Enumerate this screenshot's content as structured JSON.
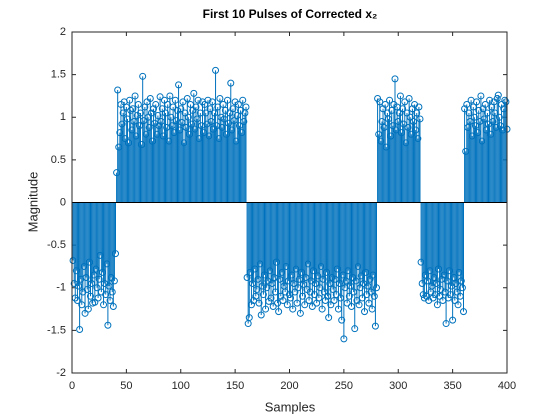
{
  "chart_data": {
    "type": "stem",
    "title": "First 10 Pulses of Corrected x₂",
    "xlabel": "Samples",
    "ylabel": "Magnitude",
    "color": "#0072bd",
    "xlim": [
      0,
      400
    ],
    "ylim": [
      -2,
      2
    ],
    "xticks": [
      0,
      50,
      100,
      150,
      200,
      250,
      300,
      350,
      400
    ],
    "yticks": [
      -2,
      -1.5,
      -1,
      -0.5,
      0,
      0.5,
      1,
      1.5,
      2
    ],
    "x": [
      1,
      2,
      3,
      4,
      5,
      6,
      7,
      8,
      9,
      10,
      11,
      12,
      13,
      14,
      15,
      16,
      17,
      18,
      19,
      20,
      21,
      22,
      23,
      24,
      25,
      26,
      27,
      28,
      29,
      30,
      31,
      32,
      33,
      34,
      35,
      36,
      37,
      38,
      39,
      40,
      41,
      42,
      43,
      44,
      45,
      46,
      47,
      48,
      49,
      50,
      51,
      52,
      53,
      54,
      55,
      56,
      57,
      58,
      59,
      60,
      61,
      62,
      63,
      64,
      65,
      66,
      67,
      68,
      69,
      70,
      71,
      72,
      73,
      74,
      75,
      76,
      77,
      78,
      79,
      80,
      81,
      82,
      83,
      84,
      85,
      86,
      87,
      88,
      89,
      90,
      91,
      92,
      93,
      94,
      95,
      96,
      97,
      98,
      99,
      100,
      101,
      102,
      103,
      104,
      105,
      106,
      107,
      108,
      109,
      110,
      111,
      112,
      113,
      114,
      115,
      116,
      117,
      118,
      119,
      120,
      121,
      122,
      123,
      124,
      125,
      126,
      127,
      128,
      129,
      130,
      131,
      132,
      133,
      134,
      135,
      136,
      137,
      138,
      139,
      140,
      141,
      142,
      143,
      144,
      145,
      146,
      147,
      148,
      149,
      150,
      151,
      152,
      153,
      154,
      155,
      156,
      157,
      158,
      159,
      160,
      161,
      162,
      163,
      164,
      165,
      166,
      167,
      168,
      169,
      170,
      171,
      172,
      173,
      174,
      175,
      176,
      177,
      178,
      179,
      180,
      181,
      182,
      183,
      184,
      185,
      186,
      187,
      188,
      189,
      190,
      191,
      192,
      193,
      194,
      195,
      196,
      197,
      198,
      199,
      200,
      201,
      202,
      203,
      204,
      205,
      206,
      207,
      208,
      209,
      210,
      211,
      212,
      213,
      214,
      215,
      216,
      217,
      218,
      219,
      220,
      221,
      222,
      223,
      224,
      225,
      226,
      227,
      228,
      229,
      230,
      231,
      232,
      233,
      234,
      235,
      236,
      237,
      238,
      239,
      240,
      241,
      242,
      243,
      244,
      245,
      246,
      247,
      248,
      249,
      250,
      251,
      252,
      253,
      254,
      255,
      256,
      257,
      258,
      259,
      260,
      261,
      262,
      263,
      264,
      265,
      266,
      267,
      268,
      269,
      270,
      271,
      272,
      273,
      274,
      275,
      276,
      277,
      278,
      279,
      280,
      281,
      282,
      283,
      284,
      285,
      286,
      287,
      288,
      289,
      290,
      291,
      292,
      293,
      294,
      295,
      296,
      297,
      298,
      299,
      300,
      301,
      302,
      303,
      304,
      305,
      306,
      307,
      308,
      309,
      310,
      311,
      312,
      313,
      314,
      315,
      316,
      317,
      318,
      319,
      320,
      321,
      322,
      323,
      324,
      325,
      326,
      327,
      328,
      329,
      330,
      331,
      332,
      333,
      334,
      335,
      336,
      337,
      338,
      339,
      340,
      341,
      342,
      343,
      344,
      345,
      346,
      347,
      348,
      349,
      350,
      351,
      352,
      353,
      354,
      355,
      356,
      357,
      358,
      359,
      360,
      361,
      362,
      363,
      364,
      365,
      366,
      367,
      368,
      369,
      370,
      371,
      372,
      373,
      374,
      375,
      376,
      377,
      378,
      379,
      380,
      381,
      382,
      383,
      384,
      385,
      386,
      387,
      388,
      389,
      390,
      391,
      392,
      393,
      394,
      395,
      396,
      397,
      398,
      399,
      400
    ],
    "values": [
      -0.68,
      -0.95,
      -1.12,
      -0.8,
      -1.15,
      -0.98,
      -1.49,
      -0.9,
      -1.2,
      -1.05,
      -0.75,
      -1.3,
      -0.88,
      -1.02,
      -1.25,
      -0.7,
      -1.1,
      -0.95,
      -1.18,
      -0.85,
      -1.17,
      -0.78,
      -1.0,
      -1.12,
      -0.9,
      -0.62,
      -1.05,
      -0.82,
      -1.2,
      -0.95,
      -1.08,
      -0.72,
      -1.44,
      -0.98,
      -1.15,
      -0.88,
      -1.05,
      -1.22,
      -0.92,
      -0.6,
      0.35,
      1.32,
      0.65,
      0.82,
      1.15,
      0.92,
      1.05,
      1.18,
      0.75,
      1.12,
      0.98,
      0.7,
      1.2,
      1.08,
      0.85,
      1.1,
      0.95,
      1.25,
      0.78,
      1.02,
      1.15,
      0.9,
      1.05,
      0.68,
      1.48,
      0.96,
      1.12,
      0.8,
      1.18,
      1.0,
      0.88,
      1.22,
      1.05,
      0.72,
      1.1,
      0.93,
      1.15,
      0.8,
      1.02,
      0.9,
      1.24,
      0.95,
      1.1,
      0.78,
      1.2,
      1.05,
      0.88,
      1.15,
      0.72,
      1.25,
      1.0,
      0.9,
      1.12,
      0.82,
      1.2,
      0.96,
      1.08,
      1.38,
      0.85,
      1.1,
      0.94,
      1.18,
      0.7,
      1.05,
      0.88,
      1.22,
      1.0,
      0.8,
      1.15,
      0.92,
      1.08,
      1.28,
      0.86,
      1.12,
      0.98,
      1.2,
      0.75,
      1.05,
      0.9,
      1.18,
      0.82,
      1.15,
      1.05,
      0.92,
      1.2,
      0.78,
      1.1,
      0.95,
      1.18,
      0.86,
      1.05,
      1.55,
      0.9,
      1.12,
      0.75,
      1.22,
      1.0,
      0.88,
      1.15,
      0.98,
      1.08,
      0.8,
      1.2,
      0.93,
      1.05,
      1.4,
      0.85,
      1.1,
      0.96,
      1.18,
      0.72,
      1.02,
      1.15,
      0.9,
      1.08,
      0.82,
      1.2,
      0.95,
      1.05,
      1.12,
      -0.88,
      -1.42,
      -1.35,
      -0.82,
      -1.2,
      -0.95,
      -1.15,
      -0.78,
      -1.1,
      -1.02,
      -0.9,
      -1.18,
      -0.72,
      -1.32,
      -0.98,
      -1.08,
      -0.85,
      -1.25,
      -1.0,
      -0.92,
      -1.16,
      -0.8,
      -1.12,
      -0.95,
      -1.22,
      -0.88,
      -1.05,
      -0.7,
      -1.18,
      -1.28,
      -0.9,
      -1.1,
      -0.82,
      -1.15,
      -0.98,
      -1.05,
      -0.75,
      -1.2,
      -0.92,
      -1.08,
      -1.12,
      -0.85,
      -1.25,
      -0.95,
      -1.05,
      -0.78,
      -1.18,
      -1.0,
      -0.9,
      -1.3,
      -0.82,
      -1.1,
      -0.96,
      -1.2,
      -0.88,
      -1.02,
      -0.72,
      -1.15,
      -1.05,
      -0.92,
      -1.22,
      -0.8,
      -1.08,
      -0.95,
      -1.18,
      -0.86,
      -1.12,
      -1.0,
      -0.75,
      -1.25,
      -0.9,
      -1.05,
      -1.15,
      -0.82,
      -1.1,
      -1.35,
      -0.95,
      -1.2,
      -0.88,
      -1.02,
      -1.15,
      -0.9,
      -1.08,
      -0.78,
      -1.25,
      -0.95,
      -1.12,
      -1.38,
      -0.85,
      -1.6,
      -1.0,
      -0.92,
      -1.18,
      -0.8,
      -1.1,
      -0.98,
      -1.22,
      -0.88,
      -1.05,
      -1.48,
      -0.92,
      -1.15,
      -0.75,
      -1.2,
      -1.0,
      -0.86,
      -1.12,
      -0.95,
      -1.28,
      -0.82,
      -1.08,
      -0.98,
      -1.18,
      -0.9,
      -1.05,
      -1.25,
      -0.85,
      -1.1,
      -1.45,
      -1.0,
      1.22,
      0.8,
      1.18,
      0.72,
      0.95,
      1.1,
      0.88,
      1.15,
      0.65,
      1.05,
      0.98,
      1.2,
      0.78,
      1.08,
      0.9,
      1.15,
      1.45,
      0.85,
      1.12,
      0.95,
      1.05,
      1.25,
      0.82,
      1.1,
      0.92,
      1.18,
      0.7,
      1.05,
      0.88,
      1.22,
      1.0,
      0.8,
      1.1,
      0.95,
      1.15,
      0.85,
      1.05,
      0.75,
      1.12,
      0.98,
      -0.7,
      -0.95,
      -1.08,
      -1.12,
      -0.85,
      -1.1,
      -0.92,
      -1.15,
      -0.8,
      -1.05,
      -0.98,
      -1.12,
      -0.88,
      -1.08,
      -0.95,
      -1.2,
      -0.78,
      -1.1,
      -1.02,
      -0.9,
      -1.15,
      -0.85,
      -1.05,
      -1.42,
      -0.92,
      -1.12,
      -0.8,
      -1.08,
      -0.98,
      -1.38,
      -0.88,
      -1.15,
      -0.95,
      -1.05,
      -1.2,
      -0.82,
      -1.1,
      -0.92,
      -1.0,
      -1.28,
      1.1,
      0.6,
      1.15,
      0.88,
      1.05,
      0.95,
      1.2,
      0.78,
      1.12,
      1.0,
      0.9,
      1.18,
      0.82,
      1.08,
      0.95,
      1.25,
      0.72,
      1.1,
      0.98,
      1.15,
      0.85,
      1.05,
      0.92,
      1.2,
      0.8,
      1.12,
      0.95,
      1.18,
      1.05,
      0.88,
      1.22,
      1.26,
      1.0,
      0.9,
      1.15,
      0.85,
      1.1,
      1.2,
      1.18,
      0.86
    ]
  }
}
